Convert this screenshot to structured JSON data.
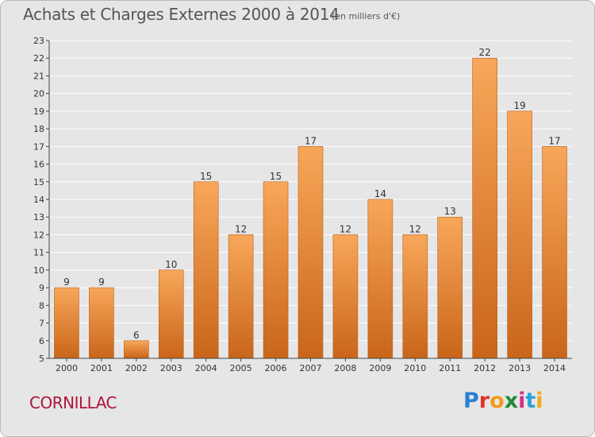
{
  "header": {
    "title": "Achats et Charges Externes 2000 à 2014",
    "unit": "(en milliers d'€)"
  },
  "footer": {
    "commune": "CORNILLAC",
    "brand": "Proxiti",
    "brand_colors": [
      "#2b7fd0",
      "#e0342a",
      "#f29a1e",
      "#1f8b3a",
      "#d62e8a",
      "#27a3d8",
      "#f2a91e"
    ]
  },
  "colors": {
    "bar_top": "#f8a75a",
    "bar_bottom": "#c9651a",
    "axis": "#444444",
    "grid": "#ffffff",
    "background": "#e6e6e6"
  },
  "chart_data": {
    "type": "bar",
    "categories": [
      "2000",
      "2001",
      "2002",
      "2003",
      "2004",
      "2005",
      "2006",
      "2007",
      "2008",
      "2009",
      "2010",
      "2011",
      "2012",
      "2013",
      "2014"
    ],
    "values": [
      9,
      9,
      6,
      10,
      15,
      12,
      15,
      17,
      12,
      14,
      12,
      13,
      22,
      19,
      17
    ],
    "ylim": [
      5,
      23
    ],
    "yticks": [
      5,
      6,
      7,
      8,
      9,
      10,
      11,
      12,
      13,
      14,
      15,
      16,
      17,
      18,
      19,
      20,
      21,
      22,
      23
    ],
    "grid": true,
    "data_labels": true,
    "legend": "none"
  }
}
